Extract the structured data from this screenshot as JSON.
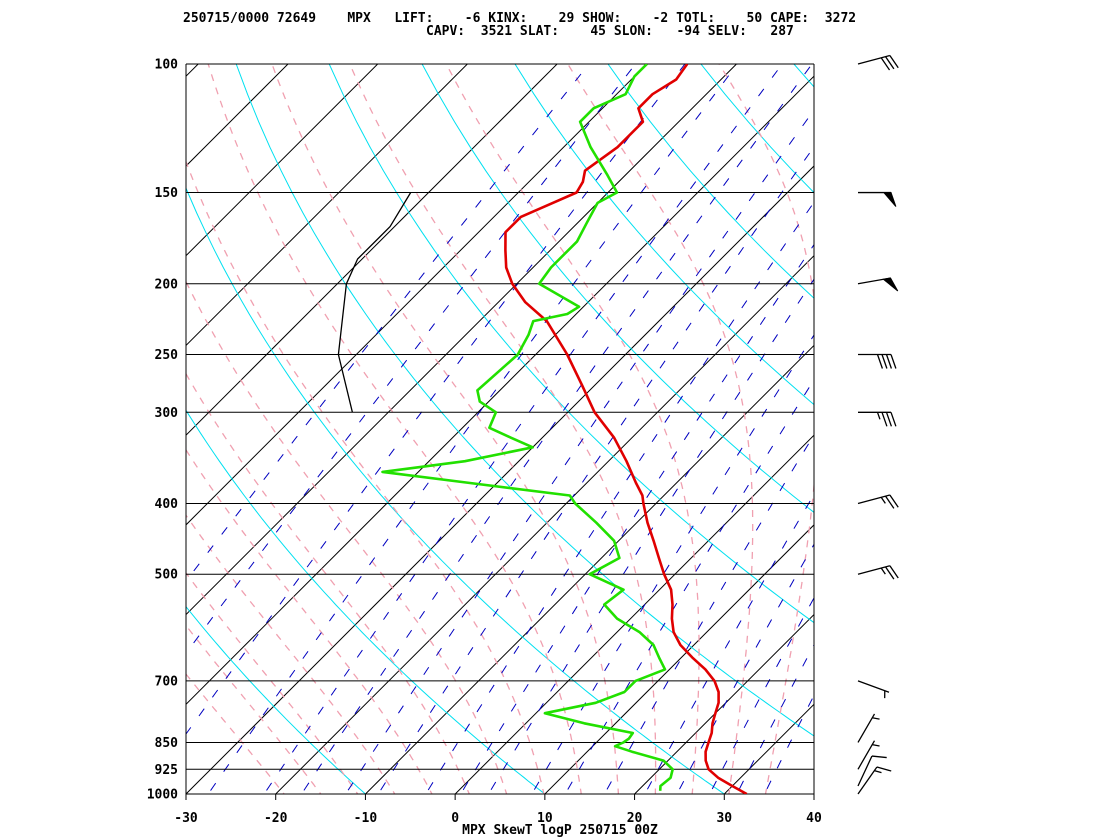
{
  "header": {
    "line1": "250715/0000 72649    MPX   LIFT:    -6 KINX:    29 SHOW:    -2 TOTL:    50 CAPE:  3272",
    "line2": "CAPV:  3521 SLAT:    45 SLON:   -94 SELV:   287"
  },
  "footer": "MPX SkewT logP 250715 00Z",
  "colors": {
    "temperature": "#e00000",
    "dewpoint": "#22e000",
    "isotherm": "#000000",
    "dry_adiabat": "#00e0f0",
    "moist_adiabat": "#f0a0b0",
    "mixing_ratio": "#0000c0",
    "parcel": "#000000"
  },
  "chart_data": {
    "type": "line",
    "subtype": "skew-t log-p sounding",
    "x_ticks": [
      "-30",
      "-20",
      "-10",
      "0",
      "10",
      "20",
      "30",
      "40"
    ],
    "xlim": [
      -30,
      40
    ],
    "y_scale": "log",
    "ylim": [
      1000,
      100
    ],
    "pressure_levels": [
      "100",
      "150",
      "200",
      "250",
      "300",
      "400",
      "500",
      "700",
      "850",
      "925",
      "1000"
    ],
    "grid": true,
    "series": [
      {
        "role": "temperature",
        "points": [
          [
            1000,
            32.5
          ],
          [
            975,
            30
          ],
          [
            950,
            27.5
          ],
          [
            925,
            25.5
          ],
          [
            900,
            24.2
          ],
          [
            875,
            23.2
          ],
          [
            850,
            22.5
          ],
          [
            825,
            21.8
          ],
          [
            800,
            20.8
          ],
          [
            775,
            20
          ],
          [
            750,
            19.2
          ],
          [
            725,
            18
          ],
          [
            700,
            16.3
          ],
          [
            675,
            14
          ],
          [
            650,
            11.2
          ],
          [
            625,
            8.5
          ],
          [
            600,
            6.3
          ],
          [
            575,
            4.6
          ],
          [
            550,
            3.1
          ],
          [
            525,
            1.3
          ],
          [
            500,
            -1.2
          ],
          [
            475,
            -3.6
          ],
          [
            450,
            -6.1
          ],
          [
            425,
            -8.8
          ],
          [
            400,
            -11.4
          ],
          [
            390,
            -12.4
          ],
          [
            375,
            -14.5
          ],
          [
            350,
            -18
          ],
          [
            325,
            -22
          ],
          [
            300,
            -27
          ],
          [
            275,
            -31.5
          ],
          [
            250,
            -36.5
          ],
          [
            225,
            -42.5
          ],
          [
            212,
            -47
          ],
          [
            200,
            -50.5
          ],
          [
            190,
            -53
          ],
          [
            180,
            -55
          ],
          [
            170,
            -57
          ],
          [
            162,
            -57
          ],
          [
            155,
            -55
          ],
          [
            150,
            -53.5
          ],
          [
            145,
            -54
          ],
          [
            140,
            -55
          ],
          [
            130,
            -54
          ],
          [
            120,
            -54
          ],
          [
            115,
            -56
          ],
          [
            110,
            -56
          ],
          [
            105,
            -55
          ],
          [
            100,
            -55.5
          ]
        ]
      },
      {
        "role": "dewpoint",
        "points": [
          [
            990,
            22.5
          ],
          [
            975,
            22
          ],
          [
            950,
            22.2
          ],
          [
            925,
            21.5
          ],
          [
            900,
            19.5
          ],
          [
            875,
            15
          ],
          [
            860,
            12.5
          ],
          [
            850,
            13
          ],
          [
            840,
            13.2
          ],
          [
            825,
            13
          ],
          [
            800,
            6.5
          ],
          [
            775,
            1
          ],
          [
            750,
            5.5
          ],
          [
            725,
            7.5
          ],
          [
            700,
            7.5
          ],
          [
            675,
            9.5
          ],
          [
            650,
            7.5
          ],
          [
            625,
            5.5
          ],
          [
            600,
            2.5
          ],
          [
            575,
            -1.5
          ],
          [
            550,
            -4.5
          ],
          [
            525,
            -4
          ],
          [
            500,
            -9.5
          ],
          [
            475,
            -8
          ],
          [
            450,
            -10.5
          ],
          [
            425,
            -14.5
          ],
          [
            400,
            -19
          ],
          [
            390,
            -20.5
          ],
          [
            375,
            -33
          ],
          [
            362,
            -44
          ],
          [
            350,
            -36
          ],
          [
            335,
            -30
          ],
          [
            325,
            -33.5
          ],
          [
            315,
            -37
          ],
          [
            300,
            -38
          ],
          [
            290,
            -41
          ],
          [
            280,
            -42.5
          ],
          [
            250,
            -42
          ],
          [
            235,
            -43
          ],
          [
            225,
            -44
          ],
          [
            220,
            -41
          ],
          [
            215,
            -40.5
          ],
          [
            200,
            -47.5
          ],
          [
            190,
            -48
          ],
          [
            175,
            -48
          ],
          [
            165,
            -49
          ],
          [
            155,
            -50
          ],
          [
            150,
            -49
          ],
          [
            142,
            -52
          ],
          [
            130,
            -57
          ],
          [
            120,
            -61
          ],
          [
            115,
            -61
          ],
          [
            110,
            -59
          ],
          [
            104,
            -60
          ],
          [
            100,
            -60
          ]
        ]
      },
      {
        "role": "parcel",
        "points": [
          [
            300,
            -54
          ],
          [
            250,
            -62
          ],
          [
            200,
            -69
          ],
          [
            185,
            -70.5
          ],
          [
            167,
            -70.5
          ],
          [
            150,
            -72
          ]
        ]
      }
    ],
    "wind_barbs": [
      {
        "pressure": 100,
        "direction": 255,
        "speed": 30
      },
      {
        "pressure": 150,
        "direction": 270,
        "speed": 50
      },
      {
        "pressure": 200,
        "direction": 260,
        "speed": 50
      },
      {
        "pressure": 250,
        "direction": 270,
        "speed": 40
      },
      {
        "pressure": 300,
        "direction": 270,
        "speed": 35
      },
      {
        "pressure": 400,
        "direction": 255,
        "speed": 25
      },
      {
        "pressure": 500,
        "direction": 255,
        "speed": 25
      },
      {
        "pressure": 700,
        "direction": 290,
        "speed": 5
      },
      {
        "pressure": 850,
        "direction": 210,
        "speed": 5
      },
      {
        "pressure": 925,
        "direction": 210,
        "speed": 5
      },
      {
        "pressure": 975,
        "direction": 205,
        "speed": 10
      },
      {
        "pressure": 1000,
        "direction": 215,
        "speed": 15
      }
    ]
  }
}
